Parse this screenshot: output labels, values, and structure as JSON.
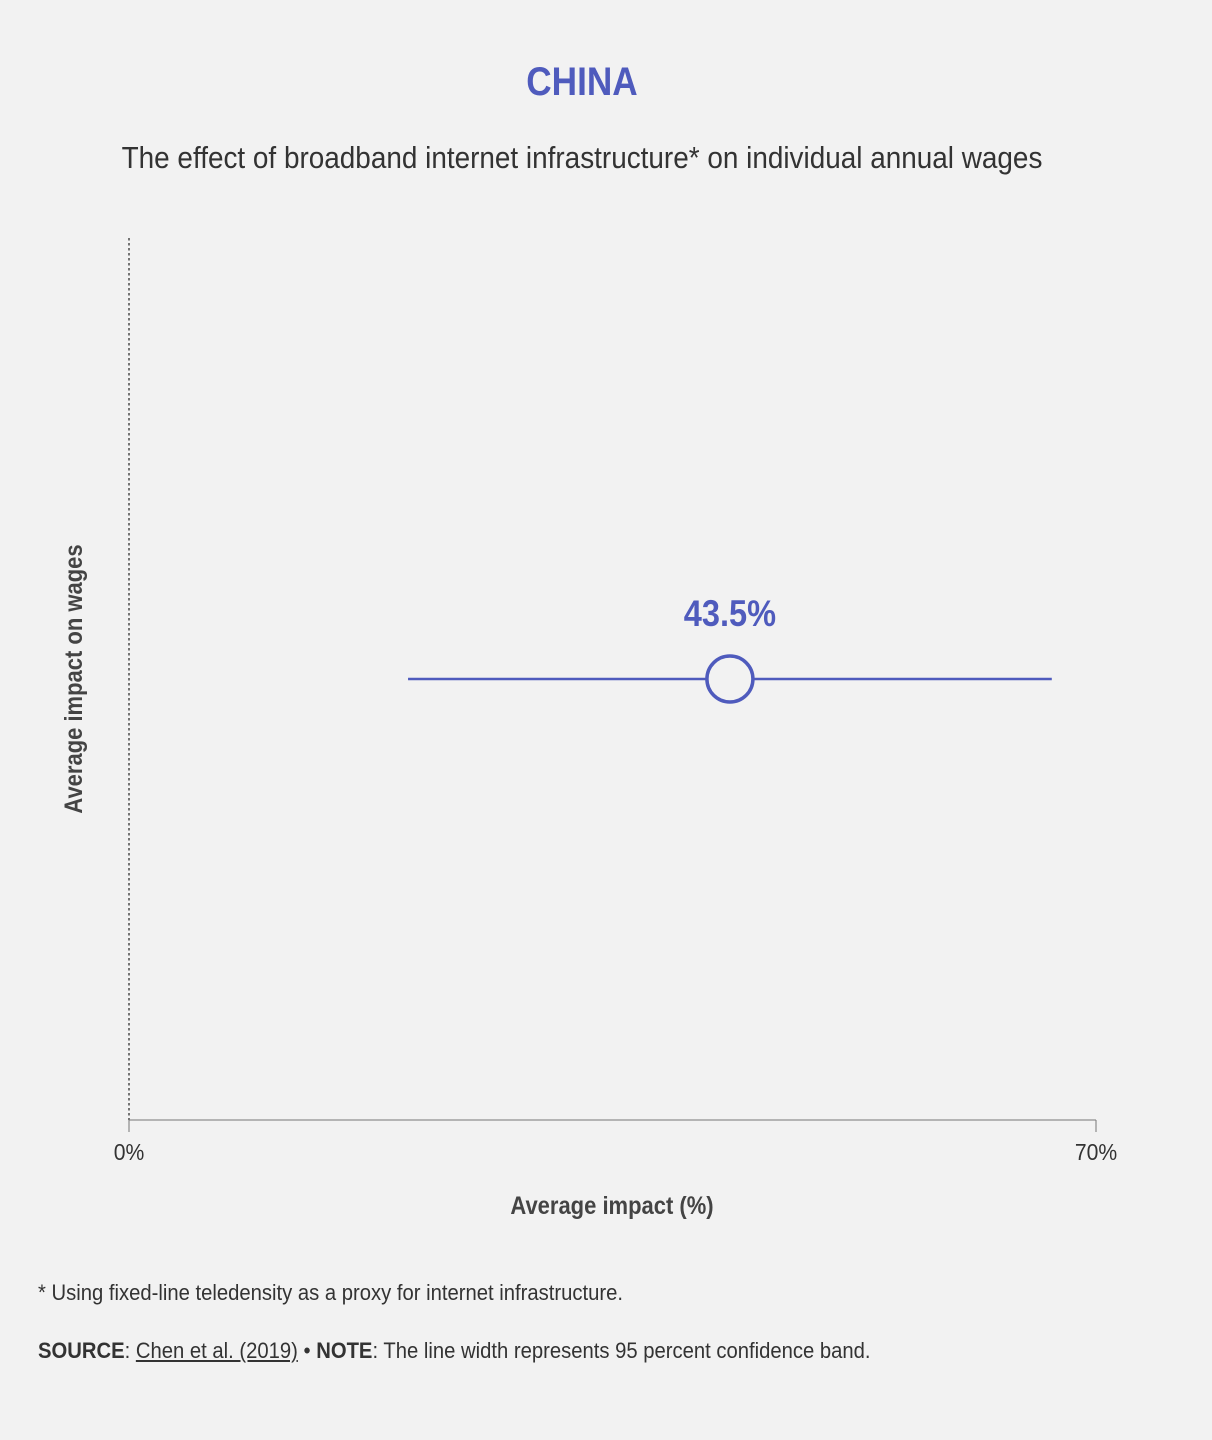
{
  "header": {
    "title": "CHINA",
    "subtitle": "The effect of broadband internet infrastructure* on individual annual wages"
  },
  "colors": {
    "accent": "#4f5bbd",
    "text": "#333333",
    "axis": "#555555",
    "background": "#f2f2f2"
  },
  "chart_data": {
    "type": "scatter",
    "xlabel": "Average impact (%)",
    "ylabel": "Average impact on wages",
    "xlim": [
      0,
      70
    ],
    "x_ticks": [
      "0%",
      "70%"
    ],
    "grid": false,
    "series": [
      {
        "points": [
          {
            "x": 43.5,
            "ci_low": 20.2,
            "ci_high": 66.8,
            "label": "43.5%"
          }
        ]
      }
    ]
  },
  "footer": {
    "footnote": "* Using fixed-line teledensity as a proxy for internet infrastructure.",
    "source_label": "SOURCE",
    "source_sep": ": ",
    "source_link": "Chen et al. (2019)",
    "note_bullet": " • ",
    "note_label": "NOTE",
    "note_text": ": The line width represents 95 percent confidence band."
  }
}
